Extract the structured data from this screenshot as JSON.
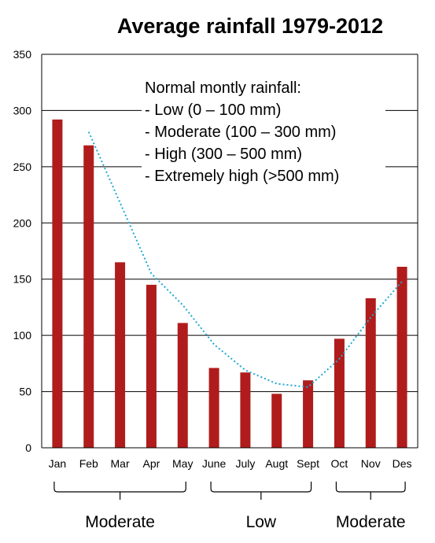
{
  "chart_data": {
    "type": "bar",
    "title": "Average rainfall 1979-2012",
    "categories": [
      "Jan",
      "Feb",
      "Mar",
      "Apr",
      "May",
      "June",
      "July",
      "Augt",
      "Sept",
      "Oct",
      "Nov",
      "Des"
    ],
    "series": [
      {
        "values": [
          292,
          269,
          165,
          145,
          111,
          71,
          67,
          48,
          60,
          97,
          133,
          161
        ],
        "color": "#b01c1c",
        "style": "bar"
      },
      {
        "values": [
          null,
          281,
          218,
          155,
          127,
          92,
          69,
          57,
          54,
          79,
          116,
          148
        ],
        "color": "#1fa8d4",
        "style": "dotted-line"
      }
    ],
    "xlabel": "",
    "ylabel": "",
    "ylim": [
      0,
      350
    ],
    "yticks": [
      "0",
      "50",
      "100",
      "150",
      "200",
      "250",
      "300",
      "350"
    ],
    "grid": true,
    "annotation": {
      "heading": "Normal montly rainfall:",
      "lines": [
        "- Low (0 – 100 mm)",
        "- Moderate (100 – 300 mm)",
        "- High (300 – 500 mm)",
        "- Extremely high (>500 mm)"
      ]
    },
    "groups": [
      {
        "label": "Moderate",
        "from": 0,
        "to": 4
      },
      {
        "label": "Low",
        "from": 5,
        "to": 8
      },
      {
        "label": "Moderate",
        "from": 9,
        "to": 11
      }
    ]
  }
}
